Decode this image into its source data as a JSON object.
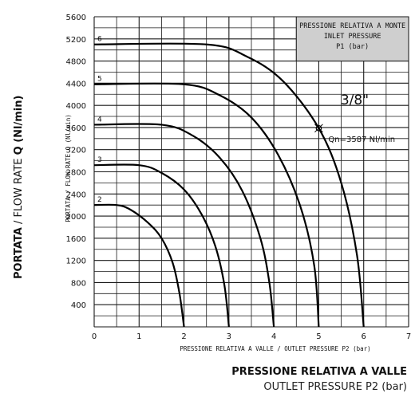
{
  "chart_data": {
    "type": "line",
    "x_range": [
      0,
      7
    ],
    "y_range": [
      0,
      5600
    ],
    "x_ticks": [
      "0",
      "1",
      "2",
      "3",
      "4",
      "5",
      "6",
      "7"
    ],
    "y_ticks": [
      "400",
      "800",
      "1200",
      "1600",
      "2000",
      "2400",
      "2800",
      "3200",
      "3600",
      "4000",
      "4400",
      "4800",
      "5200",
      "5600"
    ],
    "grid": true,
    "ylabel_inner": "PORTATA / FLOW RATE Q (Nl/min)",
    "xlabel_inner": "PRESSIONE RELATIVA A VALLE / OUTLET PRESSURE  P2 (bar)",
    "legend_box": {
      "line1": "PRESSIONE RELATIVA A MONTE",
      "line2": "INLET PRESSURE",
      "line3": "P1 (bar)"
    },
    "size_label": "3/8\"",
    "point_label": "Qn=3587 Nl/min",
    "point": {
      "x": 5.0,
      "y": 3587
    },
    "series": [
      {
        "name": "2",
        "max_flow": 2200,
        "p1": 2,
        "points": [
          [
            0,
            2200
          ],
          [
            0.5,
            2200
          ],
          [
            0.8,
            2120
          ],
          [
            1.2,
            1880
          ],
          [
            1.5,
            1600
          ],
          [
            1.75,
            1150
          ],
          [
            1.9,
            600
          ],
          [
            2.0,
            0
          ]
        ]
      },
      {
        "name": "3",
        "max_flow": 2920,
        "p1": 3,
        "points": [
          [
            0,
            2920
          ],
          [
            1.0,
            2920
          ],
          [
            1.5,
            2780
          ],
          [
            2.0,
            2480
          ],
          [
            2.4,
            2020
          ],
          [
            2.7,
            1450
          ],
          [
            2.9,
            750
          ],
          [
            3.0,
            0
          ]
        ]
      },
      {
        "name": "4",
        "max_flow": 3650,
        "p1": 4,
        "points": [
          [
            0,
            3650
          ],
          [
            1.5,
            3650
          ],
          [
            2.2,
            3450
          ],
          [
            2.8,
            3050
          ],
          [
            3.3,
            2450
          ],
          [
            3.7,
            1600
          ],
          [
            3.9,
            800
          ],
          [
            4.0,
            0
          ]
        ]
      },
      {
        "name": "5",
        "max_flow": 4380,
        "p1": 5,
        "points": [
          [
            0,
            4380
          ],
          [
            2.0,
            4380
          ],
          [
            2.8,
            4180
          ],
          [
            3.5,
            3780
          ],
          [
            4.1,
            3100
          ],
          [
            4.6,
            2150
          ],
          [
            4.9,
            1100
          ],
          [
            5.0,
            0
          ]
        ]
      },
      {
        "name": "6",
        "max_flow": 5100,
        "p1": 6,
        "points": [
          [
            0,
            5100
          ],
          [
            2.5,
            5100
          ],
          [
            3.4,
            4880
          ],
          [
            4.2,
            4440
          ],
          [
            5.0,
            3587
          ],
          [
            5.5,
            2600
          ],
          [
            5.85,
            1300
          ],
          [
            6.0,
            0
          ]
        ]
      }
    ]
  },
  "outer_titles": {
    "y_bold": "PORTATA",
    "y_rest": " / FLOW RATE ",
    "y_q": "Q",
    "y_unit": " (Nl/min)",
    "x_line1": "PRESSIONE RELATIVA A VALLE",
    "x_line2": "OUTLET PRESSURE P2 (bar)"
  }
}
